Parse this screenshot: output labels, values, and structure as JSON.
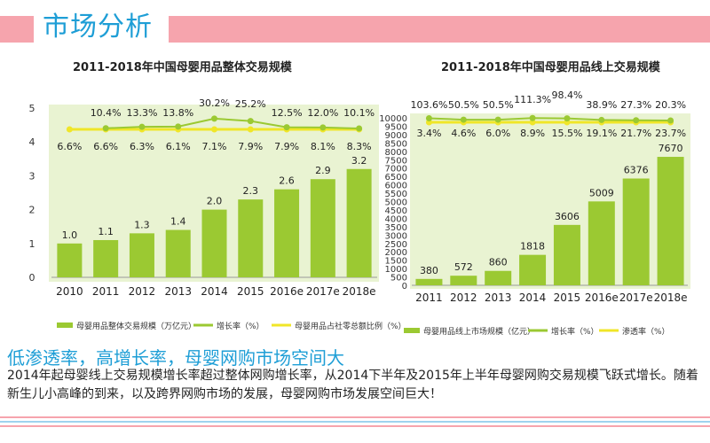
{
  "page": {
    "title": "市场分析",
    "headline": "低渗透率，高增长率，母婴网购市场空间大",
    "body": "2014年起母婴线上交易规模增长率超过整体网购增长率，从2014下半年及2015年上半年母婴网购交易规模飞跃式增长。随着新生儿小高峰的到来，以及跨界网购市场的发展，母婴网购市场发展空间巨大！"
  },
  "colors": {
    "bar": "#9bc932",
    "growth_line": "#9bc932",
    "ratio_line": "#f0e628",
    "accent": "#1e9ed6",
    "header": "#f6a4ad"
  },
  "chart_data": [
    {
      "type": "bar",
      "title": "2011-2018年中国母婴用品整体交易规模",
      "categories": [
        "2010",
        "2011",
        "2012",
        "2013",
        "2014",
        "2015",
        "2016e",
        "2017e",
        "2018e"
      ],
      "ylim": [
        0,
        5
      ],
      "yticks": [
        "0",
        "1",
        "2",
        "3",
        "4",
        "5"
      ],
      "series": [
        {
          "name": "母婴用品整体交易规模（万亿元）",
          "kind": "bar",
          "values": [
            1.0,
            1.1,
            1.3,
            1.4,
            2.0,
            2.3,
            2.6,
            2.9,
            3.2
          ],
          "labels": [
            "1.0",
            "1.1",
            "1.3",
            "1.4",
            "2.0",
            "2.3",
            "2.6",
            "2.9",
            "3.2"
          ]
        },
        {
          "name": "增长率（%）",
          "kind": "line",
          "values": [
            null,
            10.4,
            13.3,
            13.8,
            30.2,
            25.2,
            12.5,
            12.0,
            10.1
          ],
          "labels": [
            "",
            "10.4%",
            "13.3%",
            "13.8%",
            "30.2%",
            "25.2%",
            "12.5%",
            "12.0%",
            "10.1%"
          ]
        },
        {
          "name": "母婴用品占社零总额比例（%）",
          "kind": "line",
          "values": [
            6.6,
            6.6,
            6.3,
            6.1,
            7.1,
            7.9,
            7.9,
            8.1,
            8.3
          ],
          "labels": [
            "6.6%",
            "6.6%",
            "6.3%",
            "6.1%",
            "7.1%",
            "7.9%",
            "7.9%",
            "8.1%",
            "8.3%"
          ]
        }
      ],
      "legend_position": "bottom"
    },
    {
      "type": "bar",
      "title": "2011-2018年中国母婴用品线上交易规模",
      "categories": [
        "2011",
        "2012",
        "2013",
        "2014",
        "2015",
        "2016e",
        "2017e",
        "2018e"
      ],
      "ylim": [
        0,
        10000
      ],
      "yticks": [
        "0",
        "500",
        "1000",
        "1500",
        "2000",
        "2500",
        "3000",
        "3500",
        "4000",
        "4500",
        "5000",
        "5500",
        "6000",
        "6500",
        "7000",
        "7500",
        "8000",
        "8500",
        "9000",
        "9500",
        "10000"
      ],
      "series": [
        {
          "name": "母婴用品线上市场规模（亿元）",
          "kind": "bar",
          "values": [
            380,
            572,
            860,
            1818,
            3606,
            5009,
            6376,
            7670
          ],
          "labels": [
            "380",
            "572",
            "860",
            "1818",
            "3606",
            "5009",
            "6376",
            "7670"
          ]
        },
        {
          "name": "增长率（%）",
          "kind": "line",
          "values": [
            103.6,
            50.5,
            50.5,
            111.3,
            98.4,
            38.9,
            27.3,
            20.3
          ],
          "labels": [
            "103.6%",
            "50.5%",
            "50.5%",
            "111.3%",
            "98.4%",
            "38.9%",
            "27.3%",
            "20.3%"
          ]
        },
        {
          "name": "渗透率（%）",
          "kind": "line",
          "values": [
            3.4,
            4.6,
            6.0,
            8.9,
            15.5,
            19.1,
            21.7,
            23.7
          ],
          "labels": [
            "3.4%",
            "4.6%",
            "6.0%",
            "8.9%",
            "15.5%",
            "19.1%",
            "21.7%",
            "23.7%"
          ]
        }
      ],
      "legend_position": "bottom"
    }
  ]
}
